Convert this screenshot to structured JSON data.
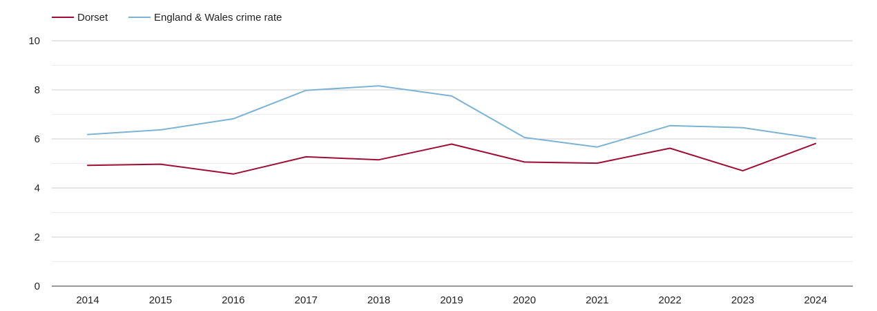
{
  "chart_data": {
    "type": "line",
    "title": "",
    "xlabel": "",
    "ylabel": "",
    "categories": [
      "2014",
      "2015",
      "2016",
      "2017",
      "2018",
      "2019",
      "2020",
      "2021",
      "2022",
      "2023",
      "2024"
    ],
    "ylim": [
      0,
      10
    ],
    "y_ticks": [
      0,
      2,
      4,
      6,
      8,
      10
    ],
    "y_tick_labels": [
      "0",
      "2",
      "4",
      "6",
      "8",
      "10"
    ],
    "grid": true,
    "legend_position": "top-left",
    "series": [
      {
        "name": "Dorset",
        "color": "#9e0d34",
        "values": [
          4.92,
          4.97,
          4.57,
          5.27,
          5.15,
          5.79,
          5.06,
          5.01,
          5.62,
          4.7,
          5.81
        ]
      },
      {
        "name": "England & Wales crime rate",
        "color": "#7ab3d3",
        "values": [
          6.18,
          6.37,
          6.82,
          7.98,
          8.16,
          7.75,
          6.06,
          5.67,
          6.54,
          6.46,
          6.02
        ]
      }
    ]
  }
}
